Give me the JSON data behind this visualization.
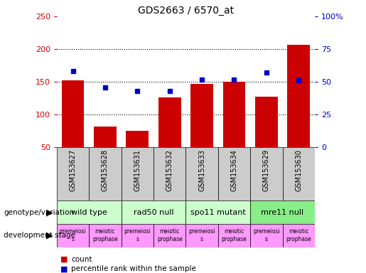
{
  "title": "GDS2663 / 6570_at",
  "samples": [
    "GSM153627",
    "GSM153628",
    "GSM153631",
    "GSM153632",
    "GSM153633",
    "GSM153634",
    "GSM153629",
    "GSM153630"
  ],
  "counts": [
    152,
    82,
    75,
    126,
    147,
    150,
    127,
    207
  ],
  "percentile_ranks": [
    58,
    46,
    43,
    43,
    52,
    52,
    57,
    51
  ],
  "ylim_left": [
    50,
    250
  ],
  "ylim_right": [
    0,
    100
  ],
  "yticks_left": [
    50,
    100,
    150,
    200,
    250
  ],
  "yticks_right": [
    0,
    25,
    50,
    75,
    100
  ],
  "ytick_labels_left": [
    "50",
    "100",
    "150",
    "200",
    "250"
  ],
  "ytick_labels_right": [
    "0",
    "25",
    "50",
    "75",
    "100%"
  ],
  "bar_color": "#cc0000",
  "dot_color": "#0000cc",
  "genotype_colors": [
    "#ccffcc",
    "#ccffcc",
    "#ccffcc",
    "#88ee88"
  ],
  "genotype_labels": [
    "wild type",
    "rad50 null",
    "spo11 mutant",
    "mre11 null"
  ],
  "genotype_ranges": [
    [
      0,
      2
    ],
    [
      2,
      4
    ],
    [
      4,
      6
    ],
    [
      6,
      8
    ]
  ],
  "dev_stage_labels": [
    "premeiosi\ns",
    "meiotic\nprophase",
    "premeiosi\ns",
    "meiotic\nprophase",
    "premeiosi\ns",
    "meiotic\nprophase",
    "premeiosi\ns",
    "meiotic\nprophase"
  ],
  "dev_stage_color": "#ff99ff",
  "sample_box_color": "#cccccc",
  "legend_count_label": "count",
  "legend_pct_label": "percentile rank within the sample",
  "left_axis_color": "#cc0000",
  "right_axis_color": "#0000cc",
  "background_color": "#ffffff",
  "left_label_texts": [
    "genotype/variation",
    "development stage"
  ],
  "gridline_ticks": [
    100,
    150,
    200
  ]
}
